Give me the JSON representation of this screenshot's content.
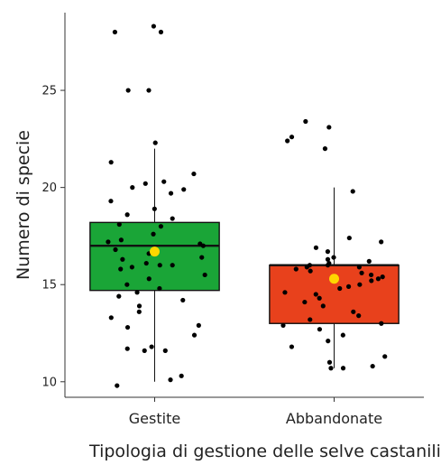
{
  "chart_data": {
    "type": "boxplot",
    "xlabel": "Tipologia di gestione delle selve castanili",
    "ylabel": "Numero di specie",
    "ylim": [
      9.2,
      29
    ],
    "yticks": [
      10,
      15,
      20,
      25
    ],
    "grid": false,
    "legend": "none",
    "categories": [
      "Gestite",
      "Abbandonate"
    ],
    "series": [
      {
        "category": "Gestite",
        "fill_color": "#1aa537",
        "q1": 14.7,
        "median": 17,
        "q3": 18.2,
        "whisker_low": 10,
        "whisker_high": 22,
        "mean": 16.7,
        "points": [
          28.3,
          28,
          28,
          25,
          25,
          22.3,
          21.3,
          20.7,
          20.3,
          20.2,
          20,
          19.9,
          19.7,
          19.3,
          18.9,
          18.6,
          18.4,
          18.1,
          18.0,
          17.6,
          17.3,
          17.2,
          17.1,
          17.0,
          16.8,
          16.6,
          16.4,
          16.3,
          16.1,
          16.0,
          16.0,
          15.9,
          15.8,
          15.5,
          15.3,
          15.0,
          14.8,
          14.6,
          14.4,
          14.2,
          13.9,
          13.6,
          13.3,
          12.9,
          12.8,
          12.4,
          11.8,
          11.7,
          11.6,
          11.6,
          10.3,
          10.1,
          9.8
        ]
      },
      {
        "category": "Abbandonate",
        "fill_color": "#e8411c",
        "q1": 13,
        "median": 16,
        "q3": 16,
        "whisker_low": 10.7,
        "whisker_high": 20,
        "mean": 15.3,
        "points": [
          23.4,
          23.1,
          22.6,
          22.4,
          22,
          19.8,
          17.4,
          17.2,
          16.9,
          16.7,
          16.4,
          16.3,
          16.2,
          16.1,
          16.0,
          16.0,
          15.9,
          15.9,
          15.8,
          15.7,
          15.6,
          15.5,
          15.4,
          15.3,
          15.2,
          15.0,
          14.9,
          14.8,
          14.6,
          14.5,
          14.3,
          14.1,
          13.9,
          13.6,
          13.4,
          13.2,
          13.0,
          12.9,
          12.7,
          12.4,
          12.1,
          11.8,
          11.3,
          11.0,
          10.8,
          10.7,
          10.7
        ]
      }
    ],
    "colors": {
      "points": "#000000",
      "mean_marker": "#ffd700",
      "box_border": "#111111",
      "axis": "#333333"
    }
  }
}
